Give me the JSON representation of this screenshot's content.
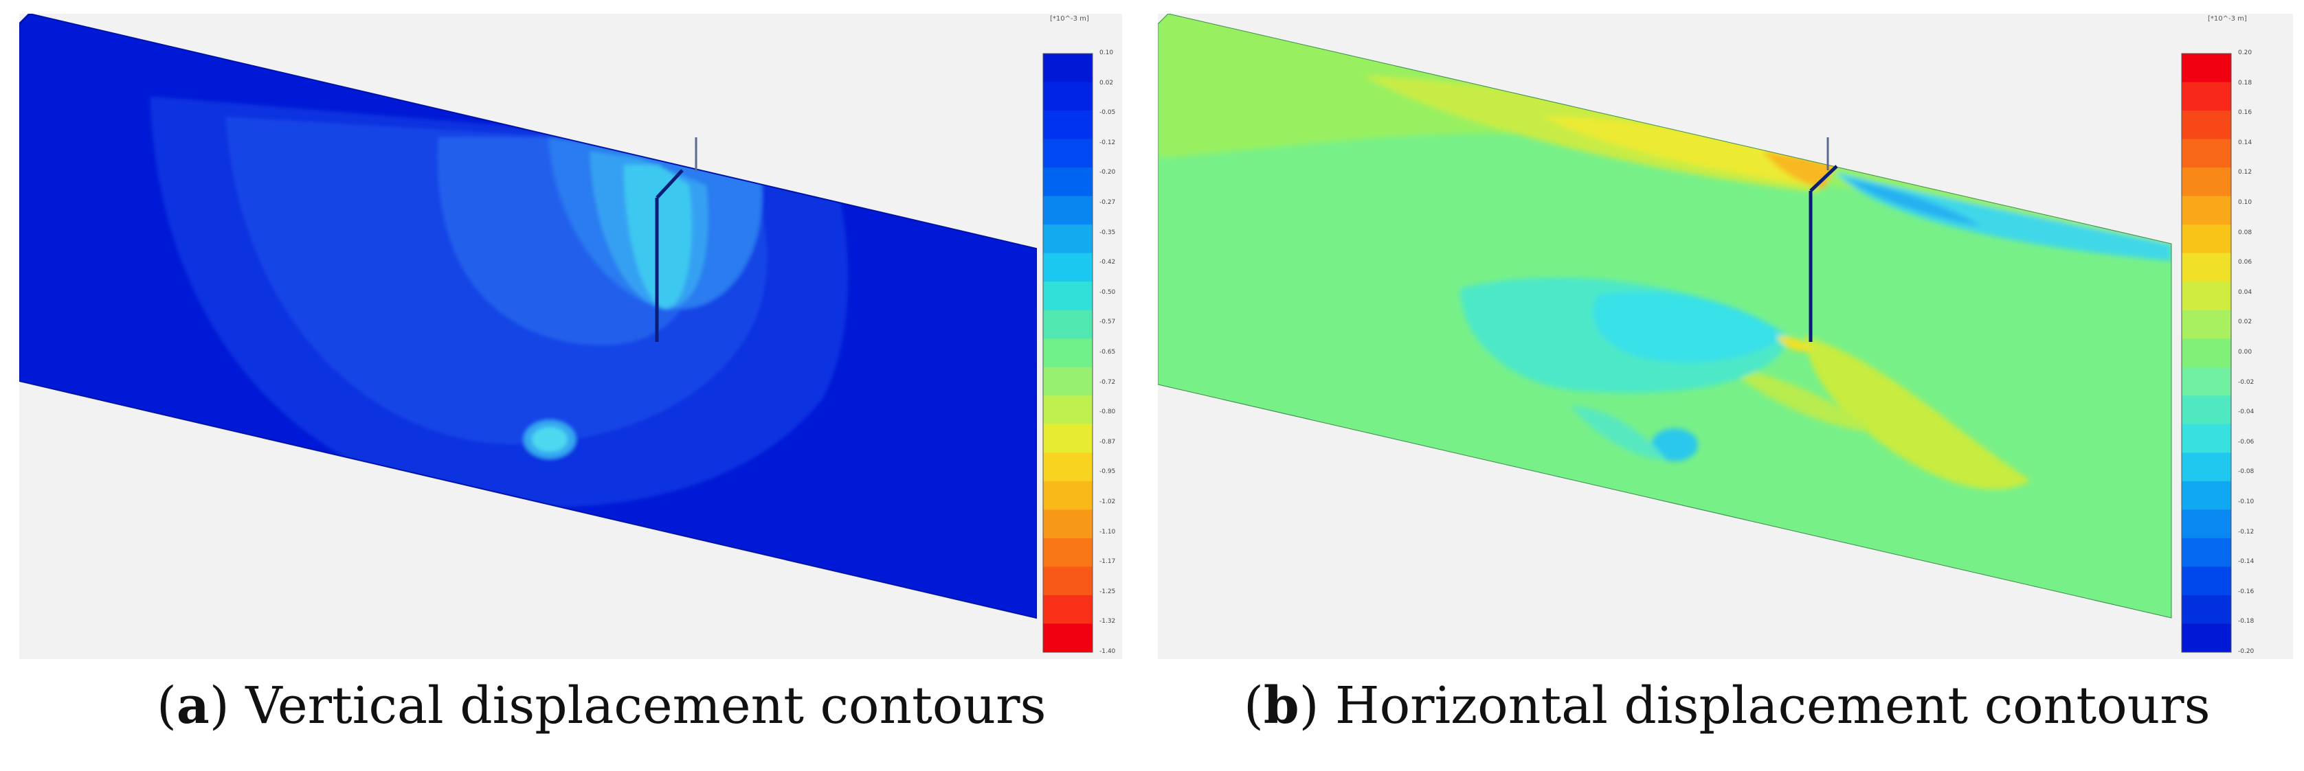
{
  "panel_a": {
    "unit_label": "[*10^-3 m]",
    "scale_ticks": [
      "0.10",
      "0.02",
      "-0.05",
      "-0.12",
      "-0.20",
      "-0.27",
      "-0.35",
      "-0.42",
      "-0.50",
      "-0.57",
      "-0.65",
      "-0.72",
      "-0.80",
      "-0.87",
      "-0.95",
      "-1.02",
      "-1.10",
      "-1.17",
      "-1.25",
      "-1.32",
      "-1.40"
    ],
    "scale_colors": [
      "#0019d6",
      "#0024e6",
      "#0033f0",
      "#0048f2",
      "#0064f2",
      "#0a86f0",
      "#14aaf0",
      "#1ac8f0",
      "#30e0d8",
      "#50e8b0",
      "#70f088",
      "#98f070",
      "#c0f050",
      "#e8ec30",
      "#f8d420",
      "#f8b818",
      "#f89818",
      "#f87818",
      "#f85818",
      "#f83018",
      "#f00010"
    ],
    "caption_letter": "a",
    "caption_text": "Vertical displacement contours"
  },
  "panel_b": {
    "unit_label": "[*10^-3 m]",
    "scale_ticks": [
      "0.20",
      "0.18",
      "0.16",
      "0.14",
      "0.12",
      "0.10",
      "0.08",
      "0.06",
      "0.04",
      "0.02",
      "0.00",
      "-0.02",
      "-0.04",
      "-0.06",
      "-0.08",
      "-0.10",
      "-0.12",
      "-0.14",
      "-0.16",
      "-0.18",
      "-0.20"
    ],
    "scale_colors": [
      "#f00010",
      "#f82818",
      "#f84818",
      "#f86818",
      "#f88818",
      "#f8a818",
      "#f8c418",
      "#f0e028",
      "#d0ec40",
      "#a8f060",
      "#80f078",
      "#70f0a0",
      "#50e8c0",
      "#38e0e0",
      "#20c8f0",
      "#10a8f0",
      "#0888f0",
      "#0468f0",
      "#0048ec",
      "#0030e0",
      "#0019d6"
    ],
    "caption_letter": "b",
    "caption_text": "Horizontal displacement contours"
  }
}
